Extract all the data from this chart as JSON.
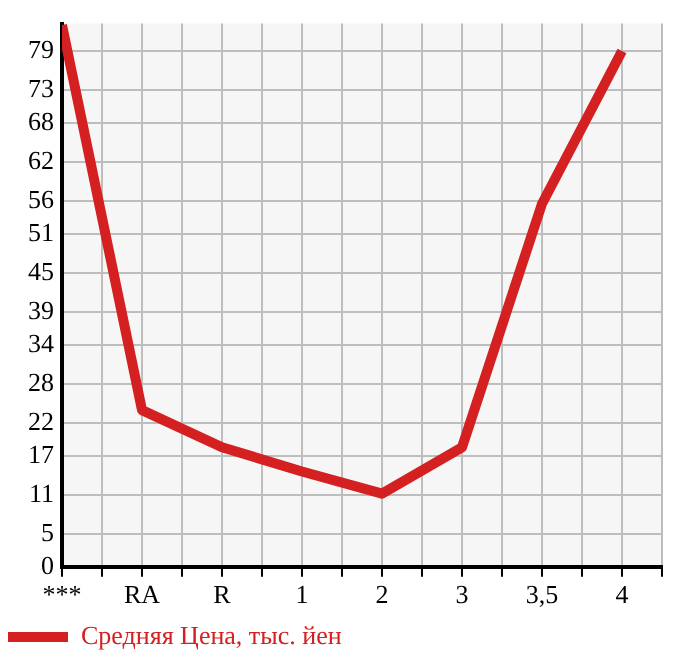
{
  "chart_data": {
    "type": "line",
    "categories": [
      "***",
      "RA",
      "R",
      "1",
      "2",
      "3",
      "3,5",
      "4"
    ],
    "series": [
      {
        "name": "Средняя Цена, тыс. йен",
        "color": "#d42020",
        "values": [
          83,
          24,
          18.3,
          14.6,
          11.2,
          18.3,
          55.6,
          79
        ]
      }
    ],
    "ylim": [
      0,
      83.2
    ],
    "yticks": [
      0,
      5,
      11,
      17,
      22,
      28,
      34,
      39,
      45,
      51,
      56,
      62,
      68,
      73,
      79
    ],
    "grid": true,
    "legend": "bottom left",
    "marker": "none",
    "line_style": "solid"
  }
}
